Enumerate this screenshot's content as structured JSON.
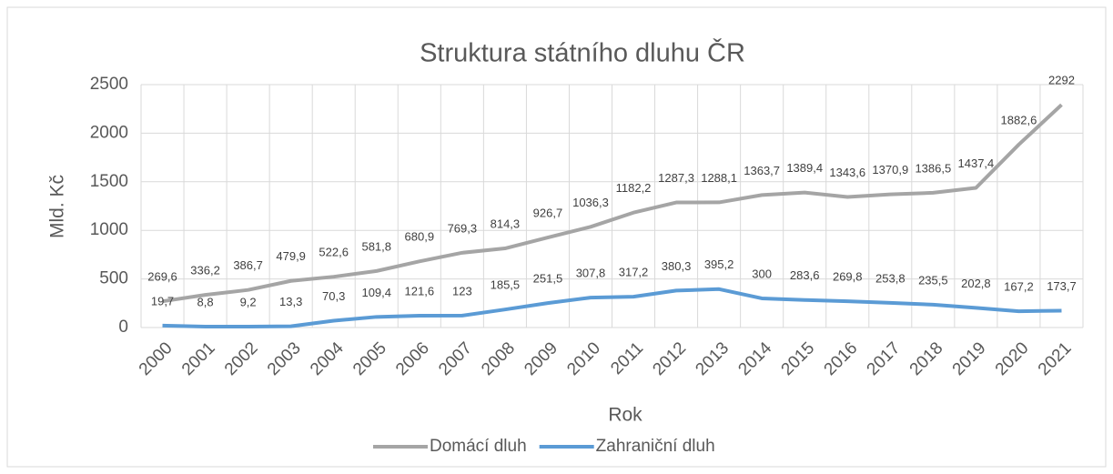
{
  "chart_data": {
    "type": "line",
    "title": "Struktura státního dluhu ČR",
    "x_label": "Rok",
    "y_label": "Mld. Kč",
    "categories": [
      "2000",
      "2001",
      "2002",
      "2003",
      "2004",
      "2005",
      "2006",
      "2007",
      "2008",
      "2009",
      "2010",
      "2011",
      "2012",
      "2013",
      "2014",
      "2015",
      "2016",
      "2017",
      "2018",
      "2019",
      "2020",
      "2021"
    ],
    "series": [
      {
        "name": "Domácí dluh",
        "color": "#a5a5a5",
        "values": [
          269.6,
          336.2,
          386.7,
          479.9,
          522.6,
          581.8,
          680.9,
          769.3,
          814.3,
          926.7,
          1036.3,
          1182.2,
          1287.3,
          1288.1,
          1363.7,
          1389.4,
          1343.6,
          1370.9,
          1386.5,
          1437.4,
          1882.6,
          2292
        ],
        "value_labels": [
          "269,6",
          "336,2",
          "386,7",
          "479,9",
          "522,6",
          "581,8",
          "680,9",
          "769,3",
          "814,3",
          "926,7",
          "1036,3",
          "1182,2",
          "1287,3",
          "1288,1",
          "1363,7",
          "1389,4",
          "1343,6",
          "1370,9",
          "1386,5",
          "1437,4",
          "1882,6",
          "2292"
        ]
      },
      {
        "name": "Zahraniční dluh",
        "color": "#5b9bd5",
        "values": [
          19.7,
          8.8,
          9.2,
          13.3,
          70.3,
          109.4,
          121.6,
          123,
          185.5,
          251.5,
          307.8,
          317.2,
          380.3,
          395.2,
          300,
          283.6,
          269.8,
          253.8,
          235.5,
          202.8,
          167.2,
          173.7
        ],
        "value_labels": [
          "19,7",
          "8,8",
          "9,2",
          "13,3",
          "70,3",
          "109,4",
          "121,6",
          "123",
          "185,5",
          "251,5",
          "307,8",
          "317,2",
          "380,3",
          "395,2",
          "300",
          "283,6",
          "269,8",
          "253,8",
          "235,5",
          "202,8",
          "167,2",
          "173,7"
        ]
      }
    ],
    "ylim": [
      0,
      2500
    ],
    "yticks": [
      0,
      500,
      1000,
      1500,
      2000,
      2500
    ],
    "grid": true,
    "legend": "bottom"
  }
}
